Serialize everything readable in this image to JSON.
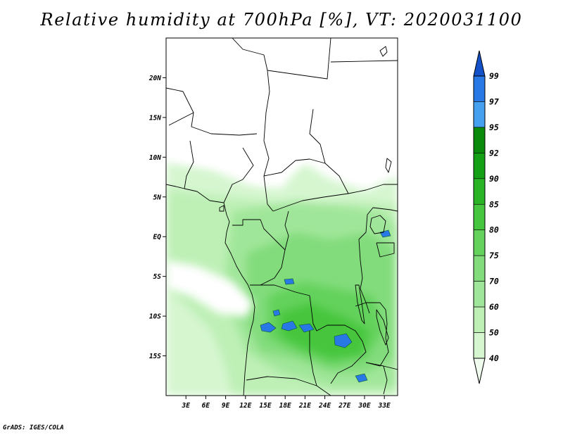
{
  "title": "Relative humidity at 700hPa [%], VT: 2020031100",
  "credit": "GrADS: IGES/COLA",
  "map": {
    "lon_range": [
      0,
      35
    ],
    "lat_range": [
      -20,
      25
    ],
    "lat_ticks": [
      {
        "value": 20,
        "label": "20N"
      },
      {
        "value": 15,
        "label": "15N"
      },
      {
        "value": 10,
        "label": "10N"
      },
      {
        "value": 5,
        "label": "5N"
      },
      {
        "value": 0,
        "label": "EQ"
      },
      {
        "value": -5,
        "label": "5S"
      },
      {
        "value": -10,
        "label": "10S"
      },
      {
        "value": -15,
        "label": "15S"
      }
    ],
    "lon_ticks": [
      {
        "value": 3,
        "label": "3E"
      },
      {
        "value": 6,
        "label": "6E"
      },
      {
        "value": 9,
        "label": "9E"
      },
      {
        "value": 12,
        "label": "12E"
      },
      {
        "value": 15,
        "label": "15E"
      },
      {
        "value": 18,
        "label": "18E"
      },
      {
        "value": 21,
        "label": "21E"
      },
      {
        "value": 24,
        "label": "24E"
      },
      {
        "value": 27,
        "label": "27E"
      },
      {
        "value": 30,
        "label": "30E"
      },
      {
        "value": 33,
        "label": "33E"
      }
    ]
  },
  "colorbar": {
    "levels": [
      "40",
      "50",
      "60",
      "70",
      "75",
      "80",
      "85",
      "90",
      "92",
      "95",
      "97",
      "99"
    ],
    "colors": [
      "#f0fcee",
      "#d6f6d0",
      "#bef0b6",
      "#a0e69a",
      "#82dc7c",
      "#64d25c",
      "#46c63e",
      "#28b424",
      "#14a014",
      "#0a8a0a",
      "#46a0f0",
      "#2878e6",
      "#1450c8"
    ]
  },
  "colors": {
    "border": "#000000",
    "low": "#ffffff",
    "high": "#2878e6"
  }
}
